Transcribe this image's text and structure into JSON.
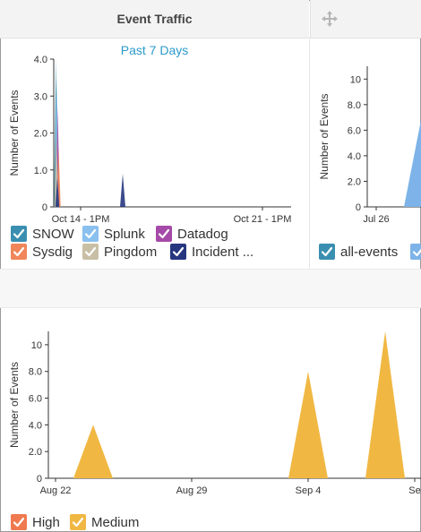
{
  "panel": {
    "title": "Event Traffic",
    "move_icon": "move-icon"
  },
  "top_chart": {
    "subtitle": "Past 7 Days",
    "chart_data": {
      "type": "area",
      "ylabel": "Number of Events",
      "ylim": [
        0,
        4
      ],
      "yticks": [
        "0",
        "1.0",
        "2.0",
        "3.0",
        "4.0"
      ],
      "xticks": [
        "Oct 14 - 1PM",
        "Oct 21 - 1PM"
      ],
      "series": [
        {
          "name": "SNOW",
          "color": "#3a8fb0",
          "peaks": [
            {
              "x": "Oct 14 - 1PM",
              "y": 4
            }
          ]
        },
        {
          "name": "Splunk",
          "color": "#8ac0ee",
          "peaks": [
            {
              "x": "Oct 14 - 1PM",
              "y": 3.5
            }
          ]
        },
        {
          "name": "Datadog",
          "color": "#a54aa8",
          "peaks": [
            {
              "x": "Oct 14 - 1PM",
              "y": 2.7
            }
          ]
        },
        {
          "name": "Sysdig",
          "color": "#f0855a",
          "peaks": [
            {
              "x": "Oct 14 - 1PM",
              "y": 1.6
            }
          ]
        },
        {
          "name": "Pingdom",
          "color": "#c9bfa5",
          "peaks": [
            {
              "x": "Oct 14 - 1PM",
              "y": 2
            }
          ]
        },
        {
          "name": "Incident ...",
          "color": "#26377f",
          "peaks": [
            {
              "x": "Oct 14 - 1PM",
              "y": 0.8
            },
            {
              "x": "Oct 15",
              "y": 0.9
            }
          ]
        }
      ]
    }
  },
  "right_chart": {
    "chart_data": {
      "type": "area",
      "ylabel": "Number of Events",
      "ylim": [
        0,
        11
      ],
      "yticks": [
        "0",
        "2.0",
        "4.0",
        "6.0",
        "8.0",
        "10"
      ],
      "xticks": [
        "Jul 26"
      ],
      "series": [
        {
          "name": "all-events",
          "color": "#7db3e8"
        }
      ]
    }
  },
  "bottom_chart": {
    "chart_data": {
      "type": "area",
      "ylabel": "Number of Events",
      "ylim": [
        0,
        11
      ],
      "yticks": [
        "0",
        "2.0",
        "4.0",
        "6.0",
        "8.0",
        "10"
      ],
      "xticks": [
        "Aug 22",
        "Aug 29",
        "Sep 4",
        "Se"
      ],
      "series": [
        {
          "name": "High",
          "color": "#ef7a4f",
          "values": []
        },
        {
          "name": "Medium",
          "color": "#f0b843",
          "peaks": [
            {
              "x": "Aug 24",
              "y": 4
            },
            {
              "x": "Sep 4",
              "y": 8
            },
            {
              "x": "Sep 8",
              "y": 11
            }
          ]
        }
      ]
    }
  }
}
